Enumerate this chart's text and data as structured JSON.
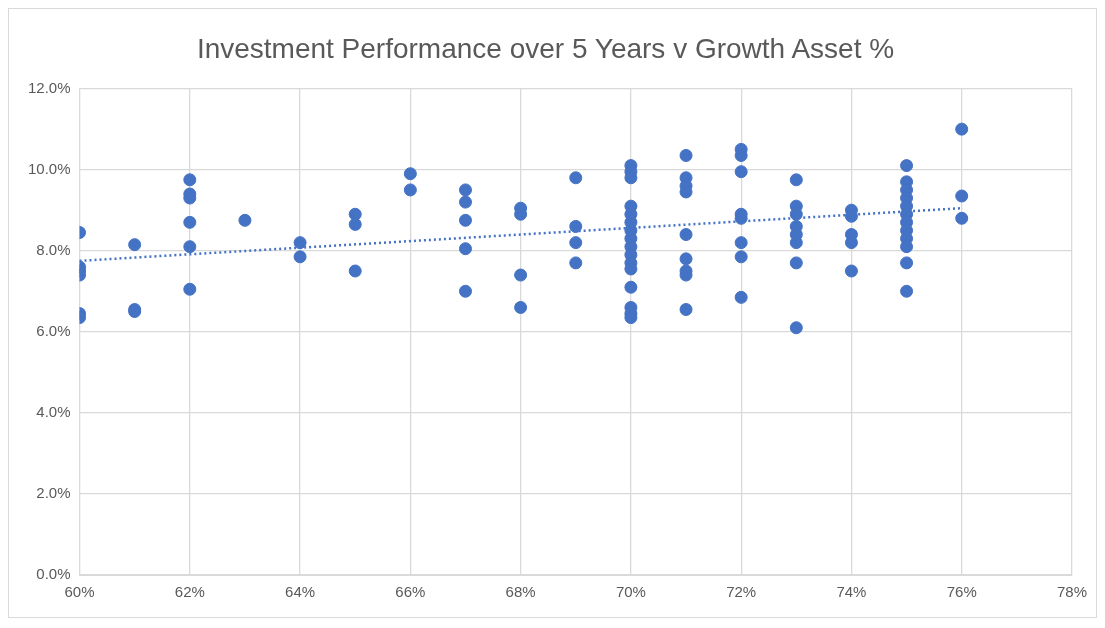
{
  "chart_data": {
    "type": "scatter",
    "title": "Investment Performance over 5 Years v Growth Asset %",
    "grid": true,
    "marker": "circle",
    "xlim": [
      60,
      78
    ],
    "xticks": [
      {
        "value": 60,
        "label": "60%"
      },
      {
        "value": 62,
        "label": "62%"
      },
      {
        "value": 64,
        "label": "64%"
      },
      {
        "value": 66,
        "label": "66%"
      },
      {
        "value": 68,
        "label": "68%"
      },
      {
        "value": 70,
        "label": "70%"
      },
      {
        "value": 72,
        "label": "72%"
      },
      {
        "value": 74,
        "label": "74%"
      },
      {
        "value": 76,
        "label": "76%"
      },
      {
        "value": 78,
        "label": "78%"
      }
    ],
    "ylim": [
      0,
      12
    ],
    "yticks": [
      {
        "value": 0,
        "label": "0.0%"
      },
      {
        "value": 2,
        "label": "2.0%"
      },
      {
        "value": 4,
        "label": "4.0%"
      },
      {
        "value": 6,
        "label": "6.0%"
      },
      {
        "value": 8,
        "label": "8.0%"
      },
      {
        "value": 10,
        "label": "10.0%"
      },
      {
        "value": 12,
        "label": "12.0%"
      }
    ],
    "series": [
      {
        "type": "scatter",
        "color": "#4472c4",
        "x": [
          60,
          60,
          60,
          60,
          60,
          60,
          61,
          61,
          61,
          62,
          62,
          62,
          62,
          62,
          62,
          63,
          64,
          64,
          65,
          65,
          65,
          66,
          66,
          67,
          67,
          67,
          67,
          67,
          68,
          68,
          68,
          68,
          69,
          69,
          69,
          69,
          70,
          70,
          70,
          70,
          70,
          70,
          70,
          70,
          70,
          70,
          70,
          70,
          70,
          70,
          70,
          70,
          71,
          71,
          71,
          71,
          71,
          71,
          71,
          71,
          71,
          72,
          72,
          72,
          72,
          72,
          72,
          72,
          72,
          73,
          73,
          73,
          73,
          73,
          73,
          73,
          73,
          74,
          74,
          74,
          74,
          74,
          75,
          75,
          75,
          75,
          75,
          75,
          75,
          75,
          75,
          75,
          75,
          75,
          76,
          76,
          76
        ],
        "values": [
          8.45,
          7.6,
          7.5,
          7.4,
          6.45,
          6.35,
          8.15,
          6.55,
          6.5,
          9.75,
          9.4,
          9.3,
          8.7,
          8.1,
          7.05,
          8.75,
          8.2,
          7.85,
          8.9,
          8.65,
          7.5,
          9.9,
          9.5,
          9.5,
          9.2,
          8.75,
          8.05,
          7.0,
          9.05,
          8.9,
          7.4,
          6.6,
          9.8,
          8.6,
          8.2,
          7.7,
          10.1,
          9.95,
          9.8,
          9.1,
          8.9,
          8.7,
          8.5,
          8.3,
          8.1,
          7.9,
          7.7,
          7.55,
          7.1,
          6.6,
          6.45,
          6.35,
          10.35,
          9.8,
          9.6,
          9.45,
          8.4,
          7.8,
          7.5,
          7.4,
          6.55,
          10.5,
          10.35,
          9.95,
          8.9,
          8.8,
          8.2,
          7.85,
          6.85,
          9.75,
          9.1,
          8.9,
          8.6,
          8.4,
          8.2,
          7.7,
          6.1,
          9.0,
          8.85,
          8.4,
          8.2,
          7.5,
          10.1,
          9.7,
          9.5,
          9.3,
          9.1,
          8.9,
          8.7,
          8.5,
          8.3,
          8.1,
          7.7,
          7.0,
          11.0,
          9.35,
          8.8
        ]
      },
      {
        "type": "line",
        "color": "#4472c4",
        "line_style": "dotted",
        "marker": "none",
        "x": [
          60,
          76
        ],
        "values": [
          7.75,
          9.05
        ]
      }
    ]
  }
}
